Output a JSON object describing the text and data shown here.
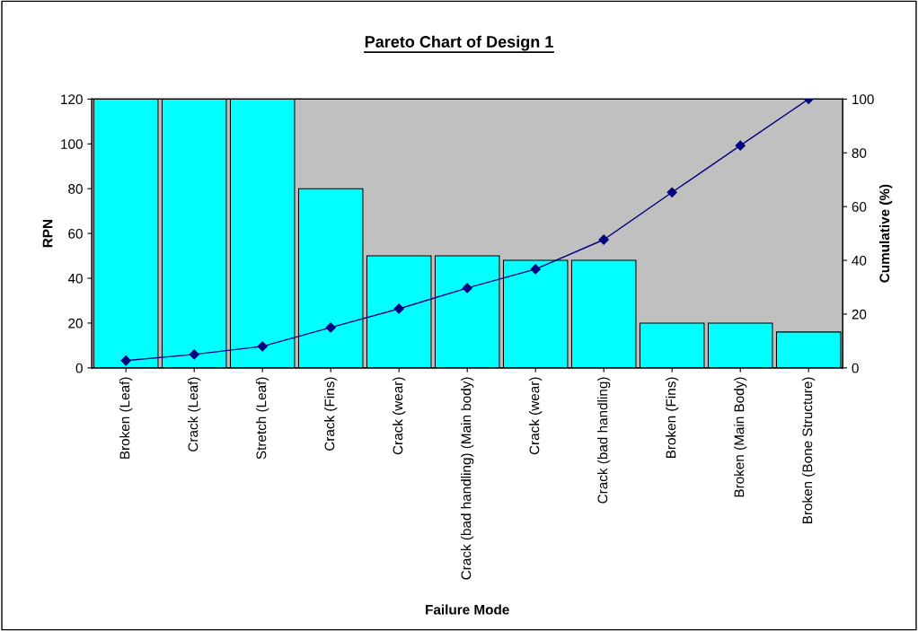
{
  "chart_data": {
    "type": "bar",
    "title": "Pareto Chart of Design 1",
    "xlabel": "Failure Mode",
    "ylabel": "RPN",
    "y2label": "Cumulative (%)",
    "categories": [
      "Broken (Leaf)",
      "Crack (Leaf)",
      "Stretch (Leaf)",
      "Crack (Fins)",
      "Crack (wear)",
      "Crack (bad handling) (Main body)",
      "Crack (wear)",
      "Crack (bad handling)",
      "Broken (Fins)",
      "Broken (Main Body)",
      "Broken (Bone Structure)"
    ],
    "series": [
      {
        "color": "#00ffff",
        "values": [
          120,
          120,
          120,
          80,
          50,
          50,
          48,
          48,
          20,
          20,
          16
        ]
      },
      {
        "type": "line",
        "axis": "y2",
        "color": "#000080",
        "marker": "diamond",
        "values": [
          2.7,
          5,
          8,
          15,
          22,
          29.7,
          36.7,
          47.7,
          65.3,
          82.7,
          100
        ]
      }
    ],
    "ylim": [
      0,
      120
    ],
    "yticks": [
      0,
      20,
      40,
      60,
      80,
      100,
      120
    ],
    "y2lim": [
      0,
      100
    ],
    "y2ticks": [
      0,
      20,
      40,
      60,
      80,
      100
    ],
    "grid": false,
    "legend": false
  }
}
